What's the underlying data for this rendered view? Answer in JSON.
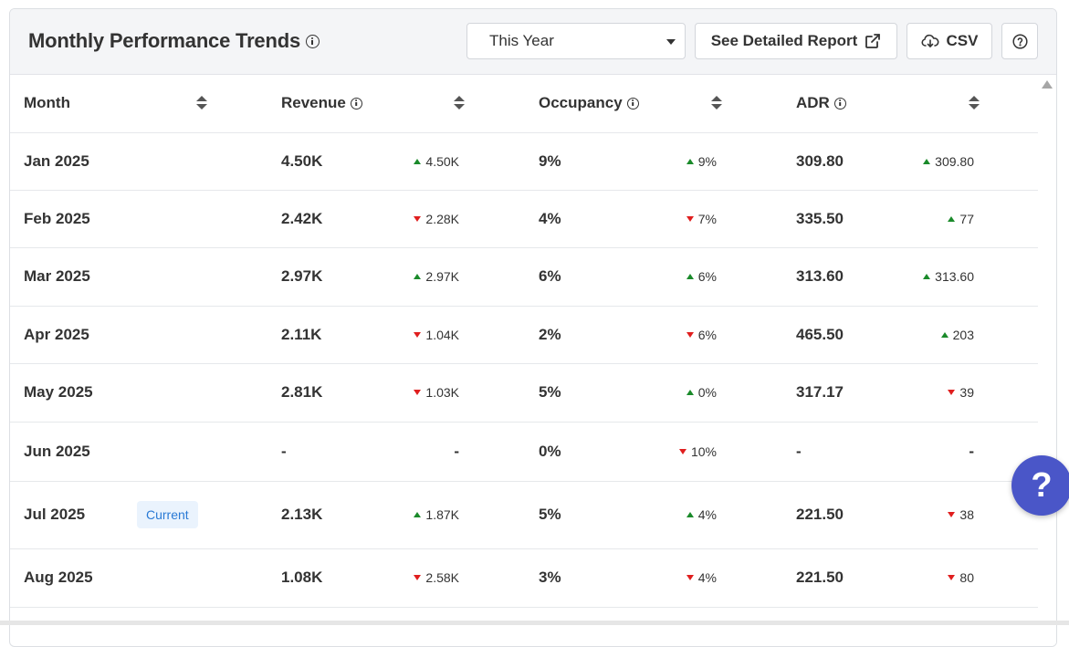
{
  "header": {
    "title": "Monthly Performance Trends",
    "period_select": "This Year",
    "report_button": "See Detailed Report",
    "csv_button": "CSV"
  },
  "table": {
    "columns": [
      "Month",
      "Revenue",
      "Occupancy",
      "ADR"
    ],
    "rows": [
      {
        "month": "Jan 2025",
        "badge": "",
        "revenue": "4.50K",
        "revenue_delta": "4.50K",
        "revenue_dir": "up",
        "occupancy": "9%",
        "occupancy_delta": "9%",
        "occupancy_dir": "up",
        "adr": "309.80",
        "adr_delta": "309.80",
        "adr_dir": "up"
      },
      {
        "month": "Feb 2025",
        "badge": "",
        "revenue": "2.42K",
        "revenue_delta": "2.28K",
        "revenue_dir": "down",
        "occupancy": "4%",
        "occupancy_delta": "7%",
        "occupancy_dir": "down",
        "adr": "335.50",
        "adr_delta": "77",
        "adr_dir": "up"
      },
      {
        "month": "Mar 2025",
        "badge": "",
        "revenue": "2.97K",
        "revenue_delta": "2.97K",
        "revenue_dir": "up",
        "occupancy": "6%",
        "occupancy_delta": "6%",
        "occupancy_dir": "up",
        "adr": "313.60",
        "adr_delta": "313.60",
        "adr_dir": "up"
      },
      {
        "month": "Apr 2025",
        "badge": "",
        "revenue": "2.11K",
        "revenue_delta": "1.04K",
        "revenue_dir": "down",
        "occupancy": "2%",
        "occupancy_delta": "6%",
        "occupancy_dir": "down",
        "adr": "465.50",
        "adr_delta": "203",
        "adr_dir": "up"
      },
      {
        "month": "May 2025",
        "badge": "",
        "revenue": "2.81K",
        "revenue_delta": "1.03K",
        "revenue_dir": "down",
        "occupancy": "5%",
        "occupancy_delta": "0%",
        "occupancy_dir": "up",
        "adr": "317.17",
        "adr_delta": "39",
        "adr_dir": "down"
      },
      {
        "month": "Jun 2025",
        "badge": "",
        "revenue": "-",
        "revenue_delta": "-",
        "revenue_dir": "none",
        "occupancy": "0%",
        "occupancy_delta": "10%",
        "occupancy_dir": "down",
        "adr": "-",
        "adr_delta": "-",
        "adr_dir": "none"
      },
      {
        "month": "Jul 2025",
        "badge": "Current",
        "revenue": "2.13K",
        "revenue_delta": "1.87K",
        "revenue_dir": "up",
        "occupancy": "5%",
        "occupancy_delta": "4%",
        "occupancy_dir": "up",
        "adr": "221.50",
        "adr_delta": "38",
        "adr_dir": "down"
      },
      {
        "month": "Aug 2025",
        "badge": "",
        "revenue": "1.08K",
        "revenue_delta": "2.58K",
        "revenue_dir": "down",
        "occupancy": "3%",
        "occupancy_delta": "4%",
        "occupancy_dir": "down",
        "adr": "221.50",
        "adr_delta": "80",
        "adr_dir": "down"
      }
    ]
  },
  "help_fab": "?",
  "colors": {
    "up": "#1a8a2a",
    "down": "#e01e1e",
    "fab": "#4a56c8",
    "badge_text": "#2a7ad5",
    "badge_bg": "#eaf3fd"
  }
}
